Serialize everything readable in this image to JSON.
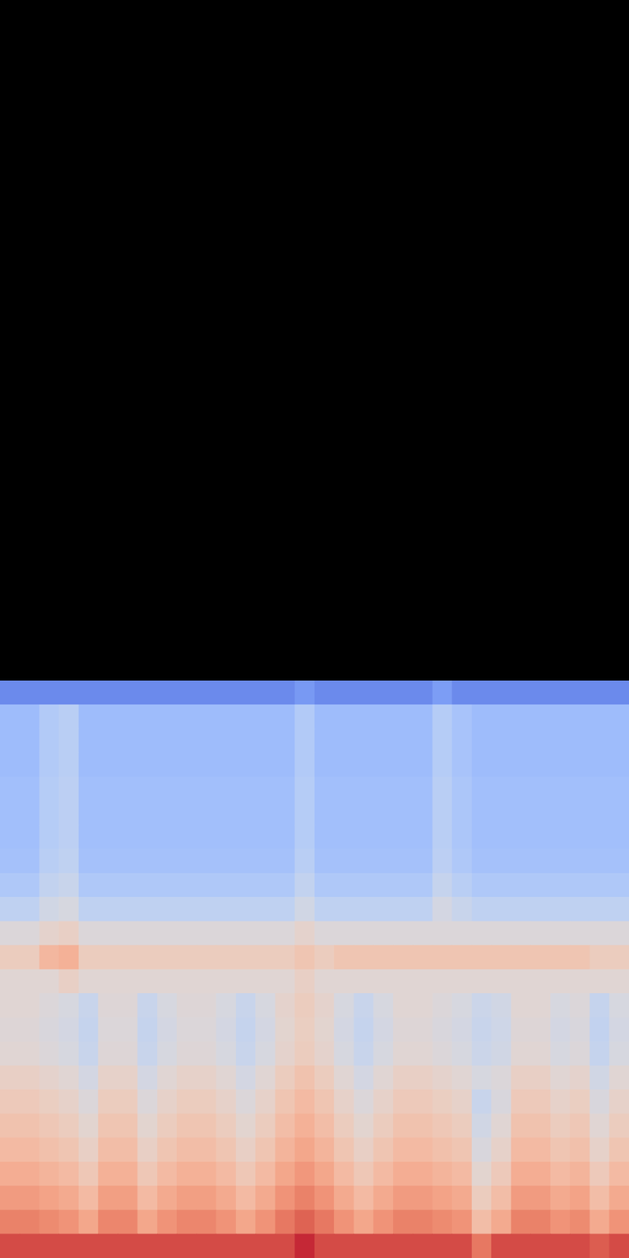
{
  "chart_data": {
    "type": "heatmap",
    "color": "coolwarm",
    "tick_labels": false,
    "xlim": [
      0,
      32
    ],
    "ylim": [
      0,
      24
    ],
    "clim": [
      0,
      100
    ],
    "cells": [
      [
        15,
        15,
        15,
        15,
        15,
        15,
        15,
        15,
        15,
        15,
        15,
        15,
        15,
        15,
        15,
        19,
        15,
        15,
        15,
        15,
        15,
        15,
        20,
        15,
        15,
        15,
        15,
        15,
        15,
        15,
        15,
        15
      ],
      [
        30,
        30,
        36,
        38,
        30,
        30,
        30,
        30,
        30,
        30,
        30,
        30,
        30,
        30,
        30,
        36,
        30,
        30,
        30,
        30,
        30,
        30,
        37,
        33,
        30,
        30,
        30,
        30,
        30,
        30,
        30,
        30
      ],
      [
        30,
        30,
        36,
        38,
        30,
        30,
        30,
        30,
        30,
        30,
        30,
        30,
        30,
        30,
        30,
        36,
        30,
        30,
        30,
        30,
        30,
        30,
        37,
        33,
        30,
        30,
        30,
        30,
        30,
        30,
        30,
        30
      ],
      [
        30,
        30,
        36,
        38,
        30,
        30,
        30,
        30,
        30,
        30,
        30,
        30,
        30,
        30,
        30,
        36,
        30,
        30,
        30,
        30,
        30,
        30,
        37,
        33,
        30,
        30,
        30,
        30,
        30,
        30,
        30,
        30
      ],
      [
        31,
        31,
        37,
        39,
        31,
        31,
        31,
        31,
        31,
        31,
        31,
        31,
        31,
        31,
        31,
        37,
        31,
        31,
        31,
        31,
        31,
        31,
        38,
        34,
        31,
        31,
        31,
        31,
        31,
        31,
        31,
        31
      ],
      [
        31,
        31,
        37,
        39,
        31,
        31,
        31,
        31,
        31,
        31,
        31,
        31,
        31,
        31,
        31,
        37,
        31,
        31,
        31,
        31,
        31,
        31,
        38,
        34,
        31,
        31,
        31,
        31,
        31,
        31,
        31,
        31
      ],
      [
        31,
        31,
        37,
        39,
        31,
        31,
        31,
        31,
        31,
        31,
        31,
        31,
        31,
        31,
        31,
        37,
        31,
        31,
        31,
        31,
        31,
        31,
        38,
        34,
        31,
        31,
        31,
        31,
        31,
        31,
        31,
        31
      ],
      [
        32,
        32,
        38,
        40,
        32,
        32,
        32,
        32,
        32,
        32,
        32,
        32,
        32,
        32,
        32,
        38,
        32,
        32,
        32,
        32,
        32,
        32,
        39,
        35,
        32,
        32,
        32,
        32,
        32,
        32,
        32,
        32
      ],
      [
        35,
        35,
        41,
        43,
        35,
        35,
        35,
        35,
        35,
        35,
        35,
        35,
        35,
        35,
        35,
        41,
        35,
        35,
        35,
        35,
        35,
        35,
        42,
        38,
        35,
        35,
        35,
        35,
        35,
        35,
        35,
        35
      ],
      [
        40,
        40,
        46,
        48,
        40,
        40,
        40,
        40,
        40,
        40,
        40,
        40,
        40,
        40,
        40,
        46,
        40,
        40,
        40,
        40,
        40,
        40,
        47,
        43,
        40,
        40,
        40,
        40,
        40,
        40,
        40,
        40
      ],
      [
        50,
        50,
        54,
        56,
        50,
        50,
        50,
        50,
        50,
        50,
        50,
        50,
        50,
        50,
        50,
        54,
        50,
        50,
        50,
        50,
        50,
        50,
        50,
        50,
        50,
        50,
        50,
        50,
        50,
        50,
        50,
        50
      ],
      [
        58,
        58,
        66,
        68,
        58,
        58,
        58,
        58,
        58,
        58,
        58,
        58,
        58,
        58,
        58,
        61,
        58,
        61,
        61,
        61,
        61,
        61,
        61,
        61,
        61,
        61,
        61,
        61,
        61,
        61,
        58,
        58
      ],
      [
        52,
        52,
        52,
        56,
        52,
        52,
        52,
        52,
        52,
        52,
        52,
        52,
        52,
        52,
        52,
        56,
        52,
        52,
        52,
        52,
        52,
        52,
        52,
        52,
        52,
        52,
        52,
        52,
        52,
        52,
        52,
        52
      ],
      [
        52,
        52,
        50,
        48,
        43,
        51,
        51,
        43,
        48,
        51,
        51,
        48,
        43,
        48,
        54,
        58,
        54,
        48,
        43,
        48,
        52,
        52,
        50,
        48,
        44,
        46,
        52,
        52,
        48,
        50,
        42,
        48
      ],
      [
        51,
        51,
        49,
        47,
        42,
        50,
        50,
        42,
        47,
        50,
        50,
        47,
        42,
        47,
        53,
        57,
        53,
        47,
        42,
        47,
        51,
        51,
        49,
        47,
        43,
        45,
        51,
        51,
        47,
        49,
        41,
        47
      ],
      [
        52,
        52,
        50,
        48,
        43,
        51,
        51,
        43,
        48,
        51,
        51,
        48,
        43,
        48,
        54,
        58,
        54,
        48,
        43,
        48,
        52,
        52,
        50,
        48,
        44,
        46,
        52,
        52,
        48,
        50,
        42,
        48
      ],
      [
        56,
        56,
        54,
        52,
        47,
        55,
        55,
        47,
        52,
        55,
        55,
        52,
        47,
        52,
        58,
        62,
        58,
        52,
        47,
        52,
        56,
        56,
        54,
        52,
        48,
        50,
        56,
        56,
        52,
        54,
        46,
        52
      ],
      [
        59,
        59,
        57,
        55,
        50,
        58,
        58,
        50,
        55,
        58,
        58,
        55,
        50,
        55,
        61,
        65,
        61,
        55,
        50,
        55,
        59,
        59,
        57,
        55,
        43,
        49,
        59,
        59,
        55,
        57,
        49,
        55
      ],
      [
        62,
        62,
        60,
        58,
        53,
        61,
        61,
        53,
        58,
        61,
        61,
        58,
        53,
        58,
        64,
        68,
        64,
        58,
        53,
        58,
        62,
        62,
        60,
        58,
        46,
        52,
        62,
        62,
        58,
        60,
        52,
        58
      ],
      [
        65,
        65,
        63,
        61,
        56,
        64,
        64,
        56,
        61,
        64,
        64,
        61,
        56,
        61,
        67,
        71,
        67,
        61,
        56,
        61,
        65,
        65,
        63,
        61,
        49,
        55,
        65,
        65,
        61,
        63,
        55,
        61
      ],
      [
        69,
        69,
        67,
        65,
        60,
        68,
        68,
        60,
        65,
        68,
        68,
        65,
        60,
        65,
        71,
        75,
        71,
        65,
        60,
        65,
        69,
        69,
        67,
        65,
        53,
        59,
        69,
        69,
        65,
        67,
        59,
        65
      ],
      [
        74,
        74,
        72,
        70,
        65,
        73,
        73,
        65,
        70,
        73,
        73,
        70,
        65,
        70,
        76,
        80,
        76,
        70,
        65,
        70,
        74,
        74,
        72,
        70,
        58,
        64,
        74,
        74,
        70,
        72,
        64,
        70
      ],
      [
        80,
        80,
        78,
        76,
        71,
        79,
        79,
        71,
        76,
        79,
        79,
        76,
        71,
        76,
        82,
        86,
        82,
        76,
        71,
        76,
        80,
        80,
        78,
        76,
        64,
        70,
        80,
        80,
        76,
        78,
        70,
        76
      ],
      [
        90,
        90,
        90,
        90,
        90,
        90,
        90,
        90,
        90,
        90,
        90,
        90,
        90,
        90,
        90,
        95,
        90,
        90,
        90,
        90,
        90,
        90,
        90,
        90,
        82,
        90,
        90,
        90,
        90,
        90,
        87,
        90
      ]
    ]
  }
}
